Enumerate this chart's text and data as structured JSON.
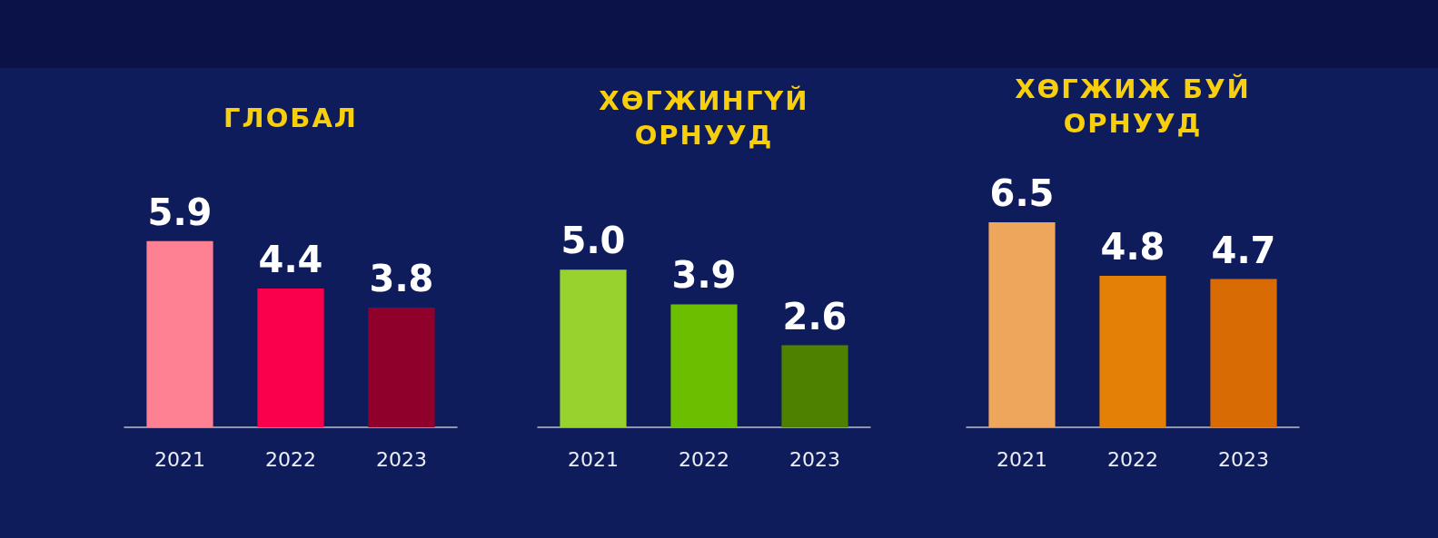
{
  "chart_data": [
    {
      "type": "bar",
      "title": "ГЛОБАЛ",
      "categories": [
        "2021",
        "2022",
        "2023"
      ],
      "values": [
        5.9,
        4.4,
        3.8
      ],
      "colors": [
        "#fd8193",
        "#fa004c",
        "#8f002a"
      ],
      "data_labels": true,
      "tick_labels": "x"
    },
    {
      "type": "bar",
      "title": "ХӨГЖИНГҮЙ ОРНУУД",
      "categories": [
        "2021",
        "2022",
        "2023"
      ],
      "values": [
        5.0,
        3.9,
        2.6
      ],
      "value_labels": [
        "5.0",
        "3.9",
        "2.6"
      ],
      "colors": [
        "#97d22e",
        "#6bbf00",
        "#4e8100"
      ],
      "tick_labels": "x"
    },
    {
      "type": "bar",
      "title": "ХӨГЖИЖ БУЙ ОРНУУД",
      "categories": [
        "2021",
        "2022",
        "2023"
      ],
      "values": [
        6.5,
        4.8,
        4.7
      ],
      "colors": [
        "#eea55c",
        "#e38005",
        "#d86b04"
      ],
      "data_labels": true,
      "tick_labels": "x"
    }
  ]
}
